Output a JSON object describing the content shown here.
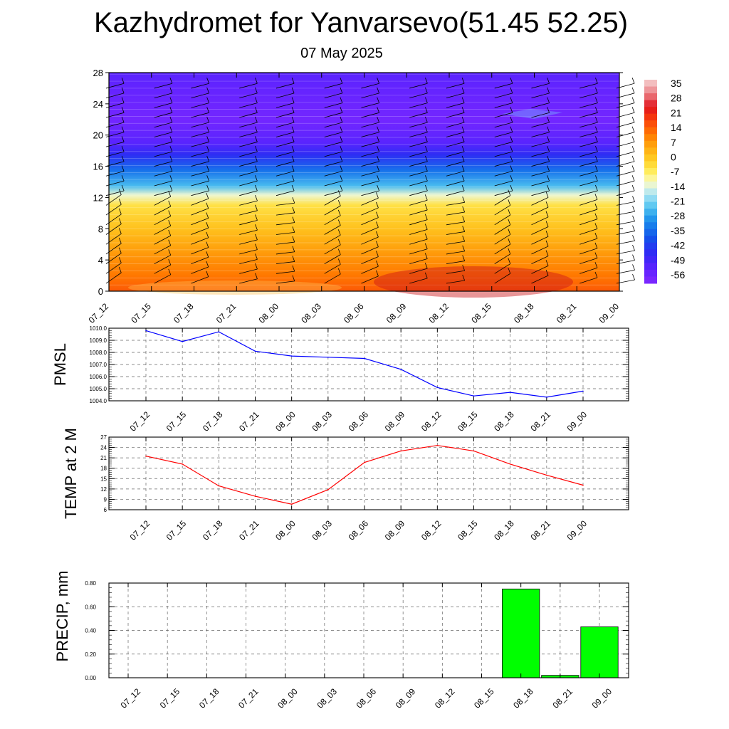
{
  "title": "Kazhydromet for Yanvarsevo(51.45 52.25)",
  "subtitle": "07 May 2025",
  "times": [
    "07_12",
    "07_15",
    "07_18",
    "07_21",
    "08_00",
    "08_03",
    "08_06",
    "08_09",
    "08_12",
    "08_15",
    "08_18",
    "08_21",
    "09_00"
  ],
  "chart_data": [
    {
      "type": "heatmap",
      "name": "upper-air temperature and wind",
      "x": [
        "07_12",
        "07_15",
        "07_18",
        "07_21",
        "08_00",
        "08_03",
        "08_06",
        "08_09",
        "08_12",
        "08_15",
        "08_18",
        "08_21",
        "09_00"
      ],
      "ylim": [
        0,
        28
      ],
      "yticks": [
        0,
        4,
        8,
        12,
        16,
        20,
        24,
        28
      ],
      "colorbar_labels": [
        "35",
        "28",
        "21",
        "14",
        "7",
        "0",
        "-7",
        "-14",
        "-21",
        "-28",
        "-35",
        "-42",
        "-49",
        "-56"
      ],
      "colorbar_range": [
        -63,
        42
      ],
      "profile": [
        {
          "level": 0,
          "value": 18
        },
        {
          "level": 2,
          "value": 14
        },
        {
          "level": 5,
          "value": 9
        },
        {
          "level": 8,
          "value": 3
        },
        {
          "level": 11,
          "value": -3
        },
        {
          "level": 12.3,
          "value": -12
        },
        {
          "level": 13.5,
          "value": -25
        },
        {
          "level": 15.5,
          "value": -35
        },
        {
          "level": 17.5,
          "value": -47
        },
        {
          "level": 19,
          "value": -55
        },
        {
          "level": 22,
          "value": -60
        },
        {
          "level": 26,
          "value": -57
        },
        {
          "level": 28,
          "value": -55
        }
      ],
      "grid": false
    },
    {
      "type": "line",
      "ylabel": "PMSL",
      "x": [
        "07_12",
        "07_15",
        "07_18",
        "07_21",
        "08_00",
        "08_03",
        "08_06",
        "08_09",
        "08_12",
        "08_15",
        "08_18",
        "08_21",
        "09_00"
      ],
      "values": [
        1009.8,
        1008.9,
        1009.7,
        1008.1,
        1007.7,
        1007.6,
        1007.5,
        1006.6,
        1005.1,
        1004.4,
        1004.7,
        1004.3,
        1004.8
      ],
      "ylim": [
        1004.0,
        1010.0
      ],
      "yticks": [
        "1004.0",
        "1005.0",
        "1006.0",
        "1007.0",
        "1008.0",
        "1009.0",
        "1010.0"
      ],
      "color": "#0000ff",
      "grid": true
    },
    {
      "type": "line",
      "ylabel": "TEMP at 2 M",
      "x": [
        "07_12",
        "07_15",
        "07_18",
        "07_21",
        "08_00",
        "08_03",
        "08_06",
        "08_09",
        "08_12",
        "08_15",
        "08_18",
        "08_21",
        "09_00"
      ],
      "values": [
        21.5,
        19.2,
        12.9,
        9.9,
        7.6,
        11.8,
        19.7,
        23.0,
        24.6,
        23.0,
        19.2,
        16.0,
        13.1
      ],
      "ylim": [
        6,
        27
      ],
      "yticks": [
        "6",
        "9",
        "12",
        "15",
        "18",
        "21",
        "24",
        "27"
      ],
      "color": "#ff0000",
      "grid": true
    },
    {
      "type": "bar",
      "ylabel": "PRECIP, mm",
      "categories": [
        "07_12",
        "07_15",
        "07_18",
        "07_21",
        "08_00",
        "08_03",
        "08_06",
        "08_09",
        "08_12",
        "08_15",
        "08_18",
        "08_21",
        "09_00"
      ],
      "values": [
        0,
        0,
        0,
        0,
        0,
        0,
        0,
        0,
        0,
        0,
        0.75,
        0.02,
        0.43
      ],
      "ylim": [
        0,
        0.8
      ],
      "yticks": [
        "0.00",
        "0.20",
        "0.40",
        "0.60",
        "0.80"
      ],
      "color": "#00ff00",
      "grid": true
    }
  ]
}
